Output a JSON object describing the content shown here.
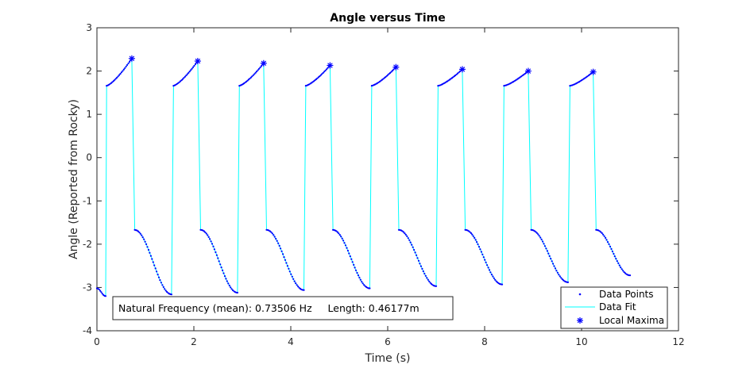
{
  "chart_data": {
    "type": "scatter",
    "title": "Angle versus Time",
    "xlabel": "Time (s)",
    "ylabel": "Angle (Reported from Rocky)",
    "xlim": [
      0,
      12
    ],
    "ylim": [
      -4,
      3
    ],
    "xticks": [
      0,
      2,
      4,
      6,
      8,
      10,
      12
    ],
    "yticks": [
      -4,
      -3,
      -2,
      -1,
      0,
      1,
      2,
      3
    ],
    "grid": false,
    "legend_position": "bottom-right",
    "colors": {
      "points": "#0000ff",
      "fit": "#00ffff",
      "maxima": "#0000ff"
    },
    "series": [
      {
        "name": "Data Points",
        "type": "points",
        "color": "#0000ff",
        "x": [],
        "y": []
      },
      {
        "name": "Data Fit",
        "type": "line",
        "color": "#00ffff",
        "x": [],
        "y": []
      },
      {
        "name": "Local Maxima",
        "type": "markers",
        "color": "#0000ff",
        "x": [
          0.72,
          2.08,
          3.44,
          4.81,
          6.17,
          7.54,
          8.9,
          10.24
        ],
        "y": [
          2.29,
          2.23,
          2.18,
          2.13,
          2.09,
          2.04,
          2.0,
          1.98
        ]
      }
    ],
    "cycles": [
      {
        "t_start": 0.0,
        "t_end": 0.18,
        "a_start": -3.02,
        "a_end": -3.2
      },
      {
        "t_start": 0.2,
        "t_end": 0.72,
        "a_start": 1.66,
        "a_end": 2.29
      },
      {
        "t_start": 0.78,
        "t_end": 1.54,
        "a_start": -1.67,
        "a_end": -3.16
      },
      {
        "t_start": 1.58,
        "t_end": 2.08,
        "a_start": 1.66,
        "a_end": 2.23
      },
      {
        "t_start": 2.14,
        "t_end": 2.9,
        "a_start": -1.67,
        "a_end": -3.12
      },
      {
        "t_start": 2.94,
        "t_end": 3.44,
        "a_start": 1.66,
        "a_end": 2.18
      },
      {
        "t_start": 3.5,
        "t_end": 4.27,
        "a_start": -1.67,
        "a_end": -3.06
      },
      {
        "t_start": 4.31,
        "t_end": 4.81,
        "a_start": 1.66,
        "a_end": 2.13
      },
      {
        "t_start": 4.87,
        "t_end": 5.63,
        "a_start": -1.67,
        "a_end": -3.02
      },
      {
        "t_start": 5.67,
        "t_end": 6.17,
        "a_start": 1.66,
        "a_end": 2.09
      },
      {
        "t_start": 6.23,
        "t_end": 7.0,
        "a_start": -1.67,
        "a_end": -2.97
      },
      {
        "t_start": 7.04,
        "t_end": 7.54,
        "a_start": 1.66,
        "a_end": 2.04
      },
      {
        "t_start": 7.6,
        "t_end": 8.36,
        "a_start": -1.67,
        "a_end": -2.93
      },
      {
        "t_start": 8.4,
        "t_end": 8.9,
        "a_start": 1.66,
        "a_end": 2.0
      },
      {
        "t_start": 8.96,
        "t_end": 9.72,
        "a_start": -1.67,
        "a_end": -2.88
      },
      {
        "t_start": 9.76,
        "t_end": 10.24,
        "a_start": 1.66,
        "a_end": 1.98
      },
      {
        "t_start": 10.3,
        "t_end": 11.0,
        "a_start": -1.67,
        "a_end": -2.72
      }
    ],
    "annotation": "Natural Frequency (mean): 0.73506 Hz     Length: 0.46177m"
  }
}
